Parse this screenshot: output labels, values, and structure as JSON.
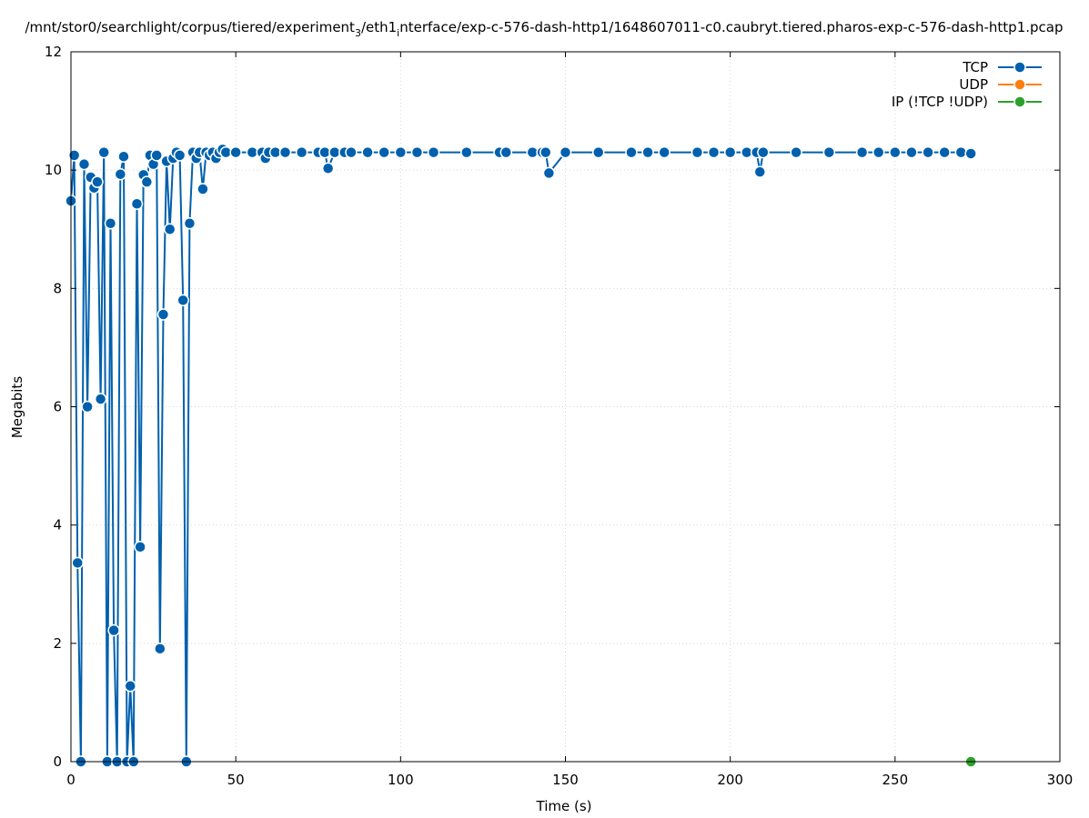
{
  "chart_data": {
    "type": "line",
    "title": "/mnt/stor0/searchlight/corpus/tiered/experiment",
    "title_parts": {
      "p1": "/mnt/stor0/searchlight/corpus/tiered/experiment",
      "p1_sub": "3",
      "p2": "/eth1",
      "p2_sub": "i",
      "p3": "nterface/exp-c-576-dash-http1/1648607011-c0.caubryt.tiered.pharos-exp-c-576-dash-http1.pcap"
    },
    "xlabel": "Time (s)",
    "ylabel": "Megabits",
    "xlim": [
      0,
      300
    ],
    "ylim": [
      0,
      12
    ],
    "xticks": [
      "0",
      "50",
      "100",
      "150",
      "200",
      "250",
      "300"
    ],
    "yticks": [
      "0",
      "2",
      "4",
      "6",
      "8",
      "10",
      "12"
    ],
    "grid": true,
    "legend_position": "top-right",
    "series": [
      {
        "name": "TCP",
        "color": "#0060ad",
        "x": [
          0,
          1,
          2,
          3,
          4,
          5,
          6,
          7,
          8,
          9,
          10,
          11,
          12,
          13,
          14,
          15,
          16,
          17,
          18,
          19,
          20,
          21,
          22,
          23,
          24,
          25,
          26,
          27,
          28,
          29,
          30,
          31,
          32,
          33,
          34,
          35,
          36,
          37,
          38,
          39,
          40,
          41,
          42,
          43,
          44,
          45,
          46,
          47,
          50,
          55,
          58,
          59,
          60,
          62,
          65,
          70,
          75,
          77,
          78,
          80,
          83,
          85,
          90,
          95,
          100,
          105,
          110,
          120,
          130,
          132,
          140,
          143,
          144,
          145,
          150,
          160,
          170,
          175,
          180,
          190,
          195,
          200,
          205,
          208,
          209,
          210,
          220,
          230,
          240,
          245,
          250,
          255,
          260,
          265,
          270,
          273
        ],
        "y": [
          9.48,
          10.25,
          3.36,
          0.0,
          10.1,
          6.0,
          9.88,
          9.7,
          9.8,
          6.13,
          10.3,
          0.0,
          9.1,
          2.22,
          0.0,
          9.93,
          10.23,
          0.0,
          1.28,
          0.0,
          9.43,
          3.63,
          9.92,
          9.8,
          10.25,
          10.1,
          10.25,
          1.91,
          7.56,
          10.15,
          9.0,
          10.2,
          10.3,
          10.25,
          7.8,
          0.0,
          9.1,
          10.3,
          10.2,
          10.3,
          9.68,
          10.3,
          10.25,
          10.3,
          10.2,
          10.3,
          10.35,
          10.3,
          10.3,
          10.3,
          10.3,
          10.2,
          10.3,
          10.3,
          10.3,
          10.3,
          10.3,
          10.3,
          10.03,
          10.3,
          10.3,
          10.3,
          10.3,
          10.3,
          10.3,
          10.3,
          10.3,
          10.3,
          10.3,
          10.3,
          10.3,
          10.3,
          10.3,
          9.95,
          10.3,
          10.3,
          10.3,
          10.3,
          10.3,
          10.3,
          10.3,
          10.3,
          10.3,
          10.3,
          9.97,
          10.3,
          10.3,
          10.3,
          10.3,
          10.3,
          10.3,
          10.3,
          10.3,
          10.3,
          10.3,
          10.28
        ]
      },
      {
        "name": "UDP",
        "color": "#ff7f0e",
        "x": [],
        "y": []
      },
      {
        "name": "IP (!TCP  !UDP)",
        "color": "#2ca02c",
        "x": [
          273
        ],
        "y": [
          0
        ]
      }
    ]
  }
}
